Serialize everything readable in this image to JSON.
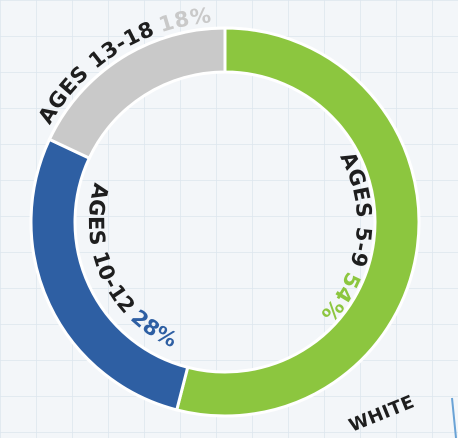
{
  "chart_data": {
    "type": "donut",
    "categories": [
      "AGES 5-9",
      "AGES 10-12",
      "AGES 13-18"
    ],
    "values": [
      54,
      28,
      18
    ],
    "value_labels": [
      "54%",
      "28%",
      "18%"
    ],
    "colors": [
      "#8cc63f",
      "#2e5fa3",
      "#c9c9c9"
    ],
    "annotations": [
      "WHITE"
    ]
  }
}
